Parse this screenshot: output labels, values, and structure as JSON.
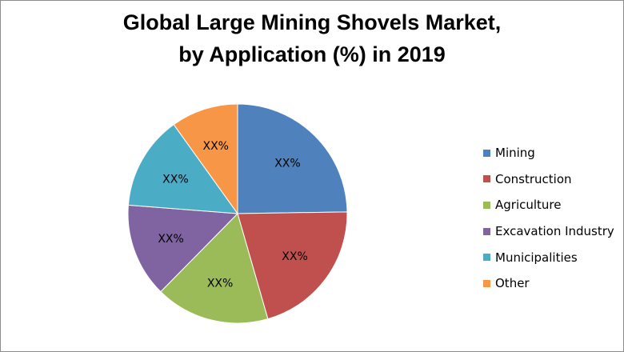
{
  "chart_data": {
    "type": "pie",
    "title_lines": [
      "Global Large Mining Shovels Market,",
      "by Application (%) in 2019"
    ],
    "legend_position": "right",
    "categories": [
      "Mining",
      "Construction",
      "Agriculture",
      "Excavation Industry",
      "Municipalities",
      "Other"
    ],
    "values": [
      25,
      21,
      17,
      14,
      14,
      10
    ],
    "data_labels": [
      "XX%",
      "XX%",
      "XX%",
      "XX%",
      "XX%",
      "XX%"
    ],
    "colors": [
      "#4f81bd",
      "#c0504d",
      "#9bbb59",
      "#8064a2",
      "#4bacc6",
      "#f79646"
    ],
    "start_angle_deg": 0,
    "direction": "clockwise"
  }
}
